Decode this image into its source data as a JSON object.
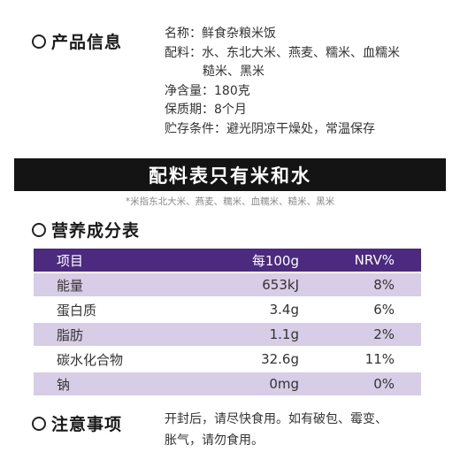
{
  "product_info": {
    "heading": "产品信息",
    "name": "名称：鲜食杂粮米饭",
    "ingredients_line1": "配料：水、东北大米、燕麦、糯米、血糯米",
    "ingredients_line2": "糙米、黑米",
    "net_content": "净含量：180克",
    "shelf_life": "保质期：8个月",
    "storage": "贮存条件：避光阴凉干燥处，常温保存"
  },
  "banner": {
    "text": "配料表只有米和水"
  },
  "footnote": "*米指东北大米、燕麦、糯米、血糯米、糙米、黑米",
  "nutrition": {
    "heading": "营养成分表",
    "header": [
      "项目",
      "每100g",
      "NRV%"
    ],
    "rows": [
      [
        "能量",
        "653kJ",
        "8%"
      ],
      [
        "蛋白质",
        "3.4g",
        "6%"
      ],
      [
        "脂肪",
        "1.1g",
        "2%"
      ],
      [
        "碳水化合物",
        "32.6g",
        "11%"
      ],
      [
        "钠",
        "0mg",
        "0%"
      ]
    ],
    "colors": {
      "header_bg": "#4b2a80",
      "stripe_bg": "#d7cde6"
    }
  },
  "notice": {
    "heading": "注意事项",
    "line1": "开封后，请尽快食用。如有破包、霉变、",
    "line2": "胀气，请勿食用。"
  }
}
